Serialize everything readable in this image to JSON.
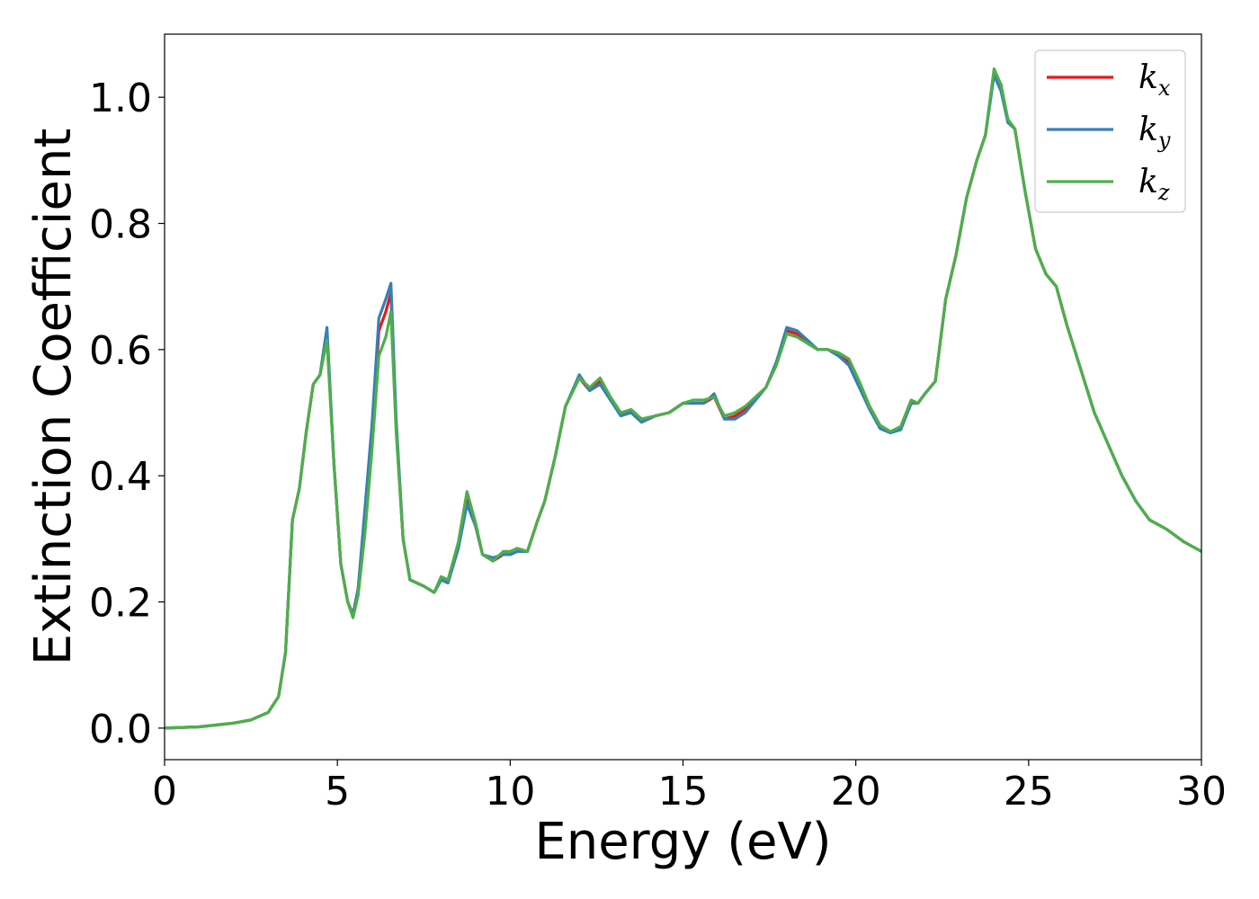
{
  "chart_data": {
    "type": "line",
    "xlabel": "Energy (eV)",
    "ylabel": "Extinction Coefficient",
    "xlim": [
      0,
      30
    ],
    "ylim": [
      -0.05,
      1.1
    ],
    "xticks": [
      0,
      5,
      10,
      15,
      20,
      25,
      30
    ],
    "xtick_labels": [
      "0",
      "5",
      "10",
      "15",
      "20",
      "25",
      "30"
    ],
    "yticks": [
      0.0,
      0.2,
      0.4,
      0.6,
      0.8,
      1.0
    ],
    "ytick_labels": [
      "0.0",
      "0.2",
      "0.4",
      "0.6",
      "0.8",
      "1.0"
    ],
    "grid": false,
    "legend_position": "top-right",
    "x": [
      0,
      1,
      2,
      2.5,
      3,
      3.3,
      3.5,
      3.7,
      3.9,
      4.1,
      4.3,
      4.5,
      4.7,
      4.9,
      5.1,
      5.3,
      5.45,
      5.6,
      5.8,
      6.0,
      6.2,
      6.4,
      6.55,
      6.7,
      6.9,
      7.1,
      7.3,
      7.5,
      7.8,
      8.0,
      8.2,
      8.5,
      8.75,
      9.0,
      9.2,
      9.5,
      9.8,
      10.0,
      10.2,
      10.5,
      10.8,
      11.0,
      11.3,
      11.6,
      12.0,
      12.3,
      12.6,
      12.9,
      13.2,
      13.5,
      13.8,
      14.2,
      14.6,
      15.0,
      15.3,
      15.6,
      15.9,
      16.2,
      16.5,
      16.8,
      17.1,
      17.4,
      17.7,
      18.0,
      18.3,
      18.6,
      18.9,
      19.2,
      19.5,
      19.8,
      20.1,
      20.4,
      20.7,
      21.0,
      21.3,
      21.6,
      21.8,
      22.0,
      22.3,
      22.6,
      22.9,
      23.2,
      23.5,
      23.75,
      24.0,
      24.2,
      24.4,
      24.6,
      24.9,
      25.2,
      25.5,
      25.8,
      26.1,
      26.5,
      26.9,
      27.3,
      27.7,
      28.1,
      28.5,
      29.0,
      29.5,
      30.0
    ],
    "series": [
      {
        "name": "k_x",
        "color": "#e41a1c",
        "values": [
          0.0,
          0.002,
          0.008,
          0.013,
          0.025,
          0.05,
          0.12,
          0.33,
          0.38,
          0.47,
          0.545,
          0.56,
          0.625,
          0.42,
          0.26,
          0.2,
          0.18,
          0.22,
          0.33,
          0.46,
          0.63,
          0.66,
          0.69,
          0.48,
          0.3,
          0.235,
          0.23,
          0.225,
          0.215,
          0.235,
          0.235,
          0.29,
          0.365,
          0.32,
          0.275,
          0.265,
          0.275,
          0.275,
          0.28,
          0.28,
          0.33,
          0.36,
          0.43,
          0.51,
          0.555,
          0.535,
          0.55,
          0.52,
          0.5,
          0.5,
          0.485,
          0.495,
          0.5,
          0.515,
          0.515,
          0.515,
          0.525,
          0.49,
          0.495,
          0.505,
          0.525,
          0.54,
          0.58,
          0.63,
          0.625,
          0.61,
          0.6,
          0.6,
          0.59,
          0.58,
          0.545,
          0.51,
          0.48,
          0.47,
          0.475,
          0.515,
          0.515,
          0.53,
          0.55,
          0.68,
          0.75,
          0.84,
          0.9,
          0.94,
          1.04,
          1.02,
          0.96,
          0.95,
          0.85,
          0.76,
          0.72,
          0.7,
          0.64,
          0.57,
          0.5,
          0.45,
          0.4,
          0.36,
          0.33,
          0.315,
          0.295,
          0.28
        ]
      },
      {
        "name": "k_y",
        "color": "#377eb8",
        "values": [
          0.0,
          0.002,
          0.008,
          0.013,
          0.025,
          0.05,
          0.12,
          0.33,
          0.38,
          0.47,
          0.545,
          0.56,
          0.635,
          0.42,
          0.26,
          0.2,
          0.18,
          0.22,
          0.35,
          0.48,
          0.65,
          0.68,
          0.705,
          0.49,
          0.3,
          0.235,
          0.23,
          0.225,
          0.215,
          0.235,
          0.23,
          0.285,
          0.355,
          0.32,
          0.275,
          0.27,
          0.275,
          0.275,
          0.28,
          0.28,
          0.33,
          0.36,
          0.43,
          0.51,
          0.56,
          0.535,
          0.545,
          0.52,
          0.495,
          0.5,
          0.485,
          0.495,
          0.5,
          0.515,
          0.515,
          0.515,
          0.53,
          0.49,
          0.49,
          0.5,
          0.52,
          0.54,
          0.58,
          0.635,
          0.63,
          0.615,
          0.6,
          0.6,
          0.59,
          0.575,
          0.54,
          0.505,
          0.475,
          0.468,
          0.473,
          0.515,
          0.515,
          0.53,
          0.55,
          0.68,
          0.75,
          0.84,
          0.9,
          0.94,
          1.035,
          1.01,
          0.96,
          0.95,
          0.85,
          0.76,
          0.72,
          0.7,
          0.64,
          0.57,
          0.5,
          0.45,
          0.4,
          0.36,
          0.33,
          0.315,
          0.295,
          0.28
        ]
      },
      {
        "name": "k_z",
        "color": "#4daf4a",
        "values": [
          0.0,
          0.002,
          0.008,
          0.013,
          0.025,
          0.05,
          0.12,
          0.33,
          0.38,
          0.47,
          0.545,
          0.56,
          0.615,
          0.42,
          0.26,
          0.2,
          0.175,
          0.21,
          0.31,
          0.44,
          0.59,
          0.62,
          0.66,
          0.47,
          0.3,
          0.235,
          0.23,
          0.225,
          0.215,
          0.24,
          0.235,
          0.295,
          0.375,
          0.325,
          0.275,
          0.265,
          0.28,
          0.28,
          0.285,
          0.28,
          0.33,
          0.36,
          0.43,
          0.51,
          0.555,
          0.54,
          0.555,
          0.525,
          0.5,
          0.505,
          0.49,
          0.495,
          0.5,
          0.515,
          0.52,
          0.52,
          0.525,
          0.495,
          0.5,
          0.51,
          0.525,
          0.54,
          0.575,
          0.625,
          0.62,
          0.61,
          0.6,
          0.6,
          0.595,
          0.585,
          0.55,
          0.51,
          0.48,
          0.47,
          0.478,
          0.52,
          0.515,
          0.53,
          0.55,
          0.68,
          0.75,
          0.84,
          0.9,
          0.94,
          1.045,
          1.02,
          0.965,
          0.95,
          0.85,
          0.76,
          0.72,
          0.7,
          0.64,
          0.57,
          0.5,
          0.45,
          0.4,
          0.36,
          0.33,
          0.315,
          0.295,
          0.28
        ]
      }
    ]
  },
  "legend": {
    "entries": [
      {
        "main": "k",
        "sub": "x"
      },
      {
        "main": "k",
        "sub": "y"
      },
      {
        "main": "k",
        "sub": "z"
      }
    ]
  }
}
